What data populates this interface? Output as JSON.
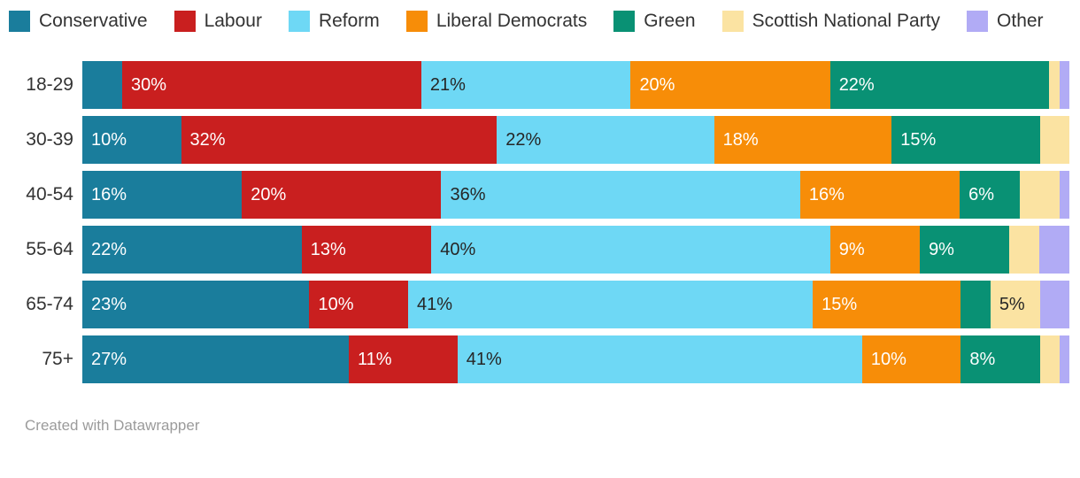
{
  "chart_data": {
    "type": "bar",
    "orientation": "horizontal",
    "stacked": true,
    "stack_total": 100,
    "legend_position": "top",
    "grid": false,
    "value_suffix": "%",
    "label_min_value": 5,
    "categories": [
      "18-29",
      "30-39",
      "40-54",
      "55-64",
      "65-74",
      "75+"
    ],
    "series": [
      {
        "name": "Conservative",
        "color": "#1a7d9c",
        "text_color": "#ffffff",
        "values": [
          4,
          10,
          16,
          22,
          23,
          27
        ]
      },
      {
        "name": "Labour",
        "color": "#c91f1f",
        "text_color": "#ffffff",
        "values": [
          30,
          32,
          20,
          13,
          10,
          11
        ]
      },
      {
        "name": "Reform",
        "color": "#6ed8f5",
        "text_color": "#262626",
        "values": [
          21,
          22,
          36,
          40,
          41,
          41
        ]
      },
      {
        "name": "Liberal Democrats",
        "color": "#f78d08",
        "text_color": "#ffffff",
        "values": [
          20,
          18,
          16,
          9,
          15,
          10
        ]
      },
      {
        "name": "Green",
        "color": "#099174",
        "text_color": "#ffffff",
        "values": [
          22,
          15,
          6,
          9,
          3,
          8
        ]
      },
      {
        "name": "Scottish National Party",
        "color": "#fbe3a2",
        "text_color": "#262626",
        "values": [
          1,
          3,
          4,
          3,
          5,
          2
        ]
      },
      {
        "name": "Other",
        "color": "#b1abf5",
        "text_color": "#262626",
        "values": [
          1,
          0,
          1,
          3,
          3,
          1
        ]
      }
    ]
  },
  "footer": {
    "credit": "Created with Datawrapper"
  }
}
